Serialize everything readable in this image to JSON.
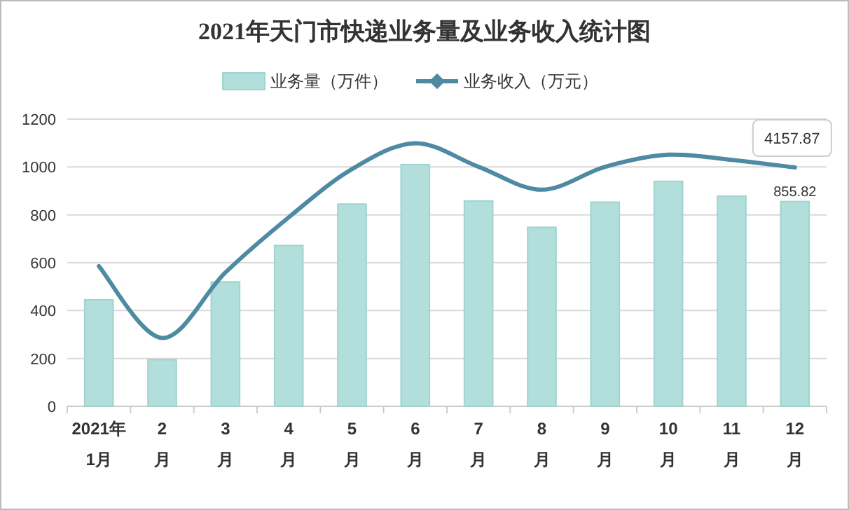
{
  "chart_data": {
    "type": "bar",
    "title": "2021年天门市快递业务量及业务收入统计图",
    "categories": [
      "2021年\n1月",
      "2\n月",
      "3\n月",
      "4\n月",
      "5\n月",
      "6\n月",
      "7\n月",
      "8\n月",
      "9\n月",
      "10\n月",
      "11\n月",
      "12\n月"
    ],
    "series": [
      {
        "name": "业务量（万件）",
        "color": "#b2dfdb",
        "values": [
          445,
          195,
          520,
          672,
          845,
          1010,
          858,
          748,
          853,
          940,
          878,
          855.82
        ],
        "value_labels": [
          null,
          null,
          null,
          null,
          null,
          null,
          null,
          null,
          null,
          null,
          null,
          "855.82"
        ]
      },
      {
        "name": "业务收入（万元）",
        "type": "line",
        "axis": "y2",
        "color": "#4e8aa2",
        "values": [
          2440,
          1190,
          2330,
          3290,
          4130,
          4580,
          4170,
          3770,
          4170,
          4380,
          4290,
          4157.87
        ],
        "value_labels": [
          null,
          null,
          null,
          null,
          null,
          null,
          null,
          null,
          null,
          null,
          null,
          "4157.87"
        ]
      }
    ],
    "ylim": [
      0,
      1200
    ],
    "yticks": [
      0,
      200,
      400,
      600,
      800,
      1000,
      1200
    ],
    "y2lim": [
      0,
      5000
    ],
    "grid": "y",
    "legend": "top"
  }
}
